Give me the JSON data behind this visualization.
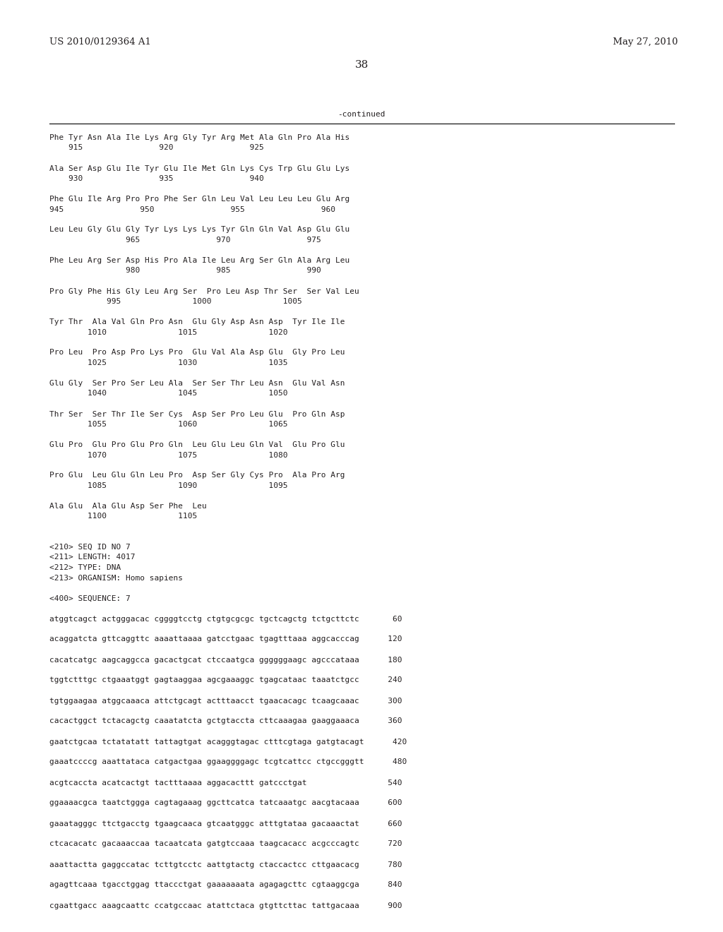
{
  "header_left": "US 2010/0129364 A1",
  "header_right": "May 27, 2010",
  "page_number": "38",
  "continued_label": "-continued",
  "background_color": "#ffffff",
  "text_color": "#231f20",
  "font_size_header": 9.5,
  "font_size_page": 11,
  "font_size_body": 8.0,
  "body_lines": [
    "Phe Tyr Asn Ala Ile Lys Arg Gly Tyr Arg Met Ala Gln Pro Ala His",
    "    915                920                925",
    "",
    "Ala Ser Asp Glu Ile Tyr Glu Ile Met Gln Lys Cys Trp Glu Glu Lys",
    "    930                935                940",
    "",
    "Phe Glu Ile Arg Pro Pro Phe Ser Gln Leu Val Leu Leu Leu Glu Arg",
    "945                950                955                960",
    "",
    "Leu Leu Gly Glu Gly Tyr Lys Lys Lys Tyr Gln Gln Val Asp Glu Glu",
    "                965                970                975",
    "",
    "Phe Leu Arg Ser Asp His Pro Ala Ile Leu Arg Ser Gln Ala Arg Leu",
    "                980                985                990",
    "",
    "Pro Gly Phe His Gly Leu Arg Ser  Pro Leu Asp Thr Ser  Ser Val Leu",
    "            995               1000               1005",
    "",
    "Tyr Thr  Ala Val Gln Pro Asn  Glu Gly Asp Asn Asp  Tyr Ile Ile",
    "        1010               1015               1020",
    "",
    "Pro Leu  Pro Asp Pro Lys Pro  Glu Val Ala Asp Glu  Gly Pro Leu",
    "        1025               1030               1035",
    "",
    "Glu Gly  Ser Pro Ser Leu Ala  Ser Ser Thr Leu Asn  Glu Val Asn",
    "        1040               1045               1050",
    "",
    "Thr Ser  Ser Thr Ile Ser Cys  Asp Ser Pro Leu Glu  Pro Gln Asp",
    "        1055               1060               1065",
    "",
    "Glu Pro  Glu Pro Glu Pro Gln  Leu Glu Leu Gln Val  Glu Pro Glu",
    "        1070               1075               1080",
    "",
    "Pro Glu  Leu Glu Gln Leu Pro  Asp Ser Gly Cys Pro  Ala Pro Arg",
    "        1085               1090               1095",
    "",
    "Ala Glu  Ala Glu Asp Ser Phe  Leu",
    "        1100               1105",
    "",
    "",
    "<210> SEQ ID NO 7",
    "<211> LENGTH: 4017",
    "<212> TYPE: DNA",
    "<213> ORGANISM: Homo sapiens",
    "",
    "<400> SEQUENCE: 7",
    "",
    "atggtcagct actgggacac cggggtcctg ctgtgcgcgc tgctcagctg tctgcttctc       60",
    "",
    "acaggatcta gttcaggttc aaaattaaaa gatcctgaac tgagtttaaa aggcacccag      120",
    "",
    "cacatcatgc aagcaggcca gacactgcat ctccaatgca ggggggaagc agcccataaa      180",
    "",
    "tggtctttgc ctgaaatggt gagtaaggaa agcgaaaggc tgagcataac taaatctgcc      240",
    "",
    "tgtggaagaa atggcaaaca attctgcagt actttaacct tgaacacagc tcaagcaaac      300",
    "",
    "cacactggct tctacagctg caaatatcta gctgtaccta cttcaaagaa gaaggaaaca      360",
    "",
    "gaatctgcaa tctatatatt tattagtgat acagggtagac ctttcgtaga gatgtacagt      420",
    "",
    "gaaatccccg aaattataca catgactgaa ggaaggggagc tcgtcattcc ctgccgggtt      480",
    "",
    "acgtcaccta acatcactgt tactttaaaa aggacacttt gatccctgat                 540",
    "",
    "ggaaaacgca taatctggga cagtagaaag ggcttcatca tatcaaatgc aacgtacaaa      600",
    "",
    "gaaatagggc ttctgacctg tgaagcaaca gtcaatgggc atttgtataa gacaaactat      660",
    "",
    "ctcacacatc gacaaaccaa tacaatcata gatgtccaaa taagcacacc acgcccagtc      720",
    "",
    "aaattactta gaggccatac tcttgtcctc aattgtactg ctaccactcc cttgaacacg      780",
    "",
    "agagttcaaa tgacctggag ttaccctgat gaaaaaaata agagagcttc cgtaaggcga      840",
    "",
    "cgaattgacc aaagcaattc ccatgccaac atattctaca gtgttcttac tattgacaaa      900"
  ]
}
